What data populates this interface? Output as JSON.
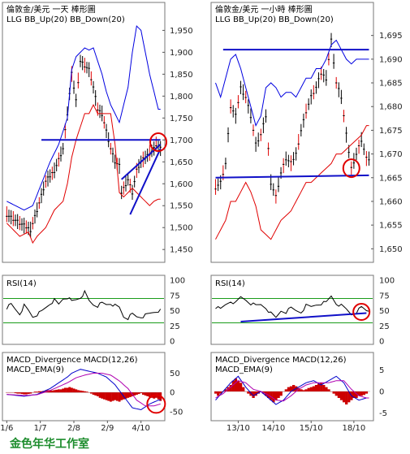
{
  "colors": {
    "price": "#000000",
    "bb_up": "#0000e0",
    "bb_down": "#e00000",
    "trend": "#1010c8",
    "circle": "#e00000",
    "rsi_ref": "#1a9c1a",
    "macd_line": "#0000cc",
    "macd_ema": "#b000b0",
    "macd_hist": "#cc0000",
    "studio": "#1c8c2c"
  },
  "studio_label": "金色年华工作室",
  "chart_data": [
    {
      "id": "daily",
      "type": "line",
      "title": "倫敦金/美元 一天 棒形圖",
      "subtitle": "LLG  BB_Up(20)  BB_Down(20)",
      "ylim": [
        1430,
        1960
      ],
      "y_ticks": [
        "1,950",
        "1,900",
        "1,850",
        "1,800",
        "1,750",
        "1,700",
        "1,650",
        "1,600",
        "1,550",
        "1,500",
        "1,450"
      ],
      "x_ticks": [
        "1/6",
        "1/7",
        "2/8",
        "2/9",
        "4/10"
      ],
      "x_tick_pos": [
        0,
        15.5,
        31,
        46.5,
        62
      ],
      "n_bars": 72,
      "price": {
        "i": [
          0,
          6,
          11,
          14,
          18,
          22,
          26,
          28,
          30,
          32,
          34,
          38,
          40,
          42,
          44,
          46,
          48,
          50,
          52,
          53,
          56,
          58,
          60,
          62,
          64,
          66,
          68,
          69,
          71
        ],
        "v": [
          1530,
          1510,
          1495,
          1540,
          1605,
          1630,
          1680,
          1760,
          1850,
          1790,
          1880,
          1860,
          1820,
          1770,
          1760,
          1720,
          1680,
          1650,
          1640,
          1580,
          1610,
          1580,
          1630,
          1650,
          1660,
          1670,
          1680,
          1690,
          1680
        ]
      },
      "bb_up": {
        "i": [
          0,
          8,
          12,
          16,
          20,
          24,
          28,
          30,
          32,
          34,
          36,
          38,
          40,
          42,
          44,
          46,
          48,
          50,
          52,
          56,
          58,
          60,
          62,
          64,
          66,
          68,
          70
        ],
        "v": [
          1560,
          1540,
          1550,
          1600,
          1650,
          1690,
          1750,
          1860,
          1890,
          1900,
          1910,
          1905,
          1910,
          1880,
          1850,
          1810,
          1780,
          1760,
          1740,
          1820,
          1900,
          1960,
          1950,
          1900,
          1850,
          1810,
          1770
        ]
      },
      "bb_down": {
        "i": [
          0,
          6,
          10,
          12,
          14,
          18,
          22,
          26,
          28,
          30,
          32,
          34,
          36,
          38,
          40,
          42,
          44,
          46,
          48,
          50,
          52,
          54,
          56,
          58,
          62,
          66,
          68,
          70
        ],
        "v": [
          1510,
          1480,
          1490,
          1465,
          1480,
          1500,
          1540,
          1560,
          1600,
          1660,
          1700,
          1730,
          1760,
          1760,
          1780,
          1760,
          1760,
          1760,
          1760,
          1690,
          1580,
          1570,
          1580,
          1590,
          1570,
          1550,
          1560,
          1565
        ]
      },
      "trend_lines": [
        {
          "i0": 16,
          "v0": 1700,
          "i1": 71,
          "v1": 1700
        },
        {
          "i0": 53,
          "v0": 1610,
          "i1": 71,
          "v1": 1690
        },
        {
          "i0": 57,
          "v0": 1530,
          "i1": 71,
          "v1": 1680
        }
      ],
      "circle": {
        "i": 70,
        "v": 1695
      },
      "rsi": {
        "label": "RSI(14)",
        "ylim": [
          0,
          100
        ],
        "y_ticks": [
          "100",
          "75",
          "50",
          "25",
          "0"
        ],
        "ref_levels": [
          70,
          30
        ],
        "i": [
          0,
          2,
          4,
          6,
          8,
          10,
          12,
          14,
          16,
          18,
          20,
          22,
          24,
          26,
          28,
          30,
          32,
          34,
          36,
          38,
          40,
          42,
          44,
          46,
          48,
          50,
          52,
          54,
          56,
          58,
          60,
          62,
          64,
          66,
          68,
          70
        ],
        "v": [
          55,
          60,
          52,
          45,
          58,
          50,
          40,
          44,
          48,
          55,
          62,
          67,
          60,
          70,
          72,
          65,
          68,
          72,
          80,
          66,
          60,
          58,
          62,
          60,
          62,
          58,
          55,
          40,
          38,
          44,
          40,
          40,
          42,
          45,
          48,
          50
        ]
      },
      "macd": {
        "label1": "MACD_Divergence  MACD(12,26)",
        "label2": "MACD_EMA(9)",
        "ylim": [
          -65,
          70
        ],
        "y_ticks": [
          "50",
          "0",
          "-50"
        ],
        "y_tick_vals": [
          50,
          0,
          -50
        ],
        "line": {
          "i": [
            0,
            8,
            14,
            20,
            24,
            28,
            30,
            32,
            34,
            38,
            42,
            46,
            50,
            54,
            58,
            62,
            66,
            70
          ],
          "v": [
            -5,
            -10,
            -5,
            10,
            25,
            40,
            50,
            55,
            60,
            55,
            50,
            40,
            20,
            -10,
            -40,
            -45,
            -30,
            -20
          ]
        },
        "ema": {
          "i": [
            0,
            8,
            14,
            20,
            24,
            28,
            32,
            36,
            40,
            44,
            48,
            52,
            56,
            60,
            64,
            68,
            71
          ],
          "v": [
            -5,
            -8,
            -6,
            5,
            15,
            25,
            38,
            45,
            50,
            50,
            45,
            30,
            10,
            -20,
            -35,
            -35,
            -30
          ]
        },
        "hist": {
          "i0": 0,
          "v": [
            0,
            0,
            0,
            0,
            -2,
            -3,
            -3,
            -4,
            -5,
            -5,
            -4,
            -3,
            0,
            2,
            2,
            3,
            3,
            4,
            5,
            6,
            6,
            5,
            6,
            7,
            8,
            8,
            10,
            12,
            12,
            14,
            12,
            10,
            8,
            6,
            5,
            4,
            3,
            2,
            0,
            -3,
            -6,
            -8,
            -10,
            -14,
            -16,
            -18,
            -20,
            -22,
            -24,
            -22,
            -20,
            -22,
            -24,
            -20,
            -18,
            -16,
            -14,
            -12,
            -10,
            -8,
            -6,
            -4,
            -2,
            -6,
            -8,
            -10,
            -12,
            -14,
            -16,
            -14,
            -18,
            -22
          ]
        }
      },
      "macd_circle": {
        "i": 69,
        "v": -30
      }
    },
    {
      "id": "hourly",
      "type": "line",
      "title": "倫敦金/美元 一小時 棒形圖",
      "subtitle": "LLG  BB_Up(20)  BB_Down(20)",
      "ylim": [
        1648,
        1697
      ],
      "y_ticks": [
        "1,695",
        "1,690",
        "1,685",
        "1,680",
        "1,675",
        "1,670",
        "1,665",
        "1,660",
        "1,655",
        "1,650"
      ],
      "x_ticks": [
        "13/10",
        "14/10",
        "15/10",
        "18/10"
      ],
      "x_tick_pos": [
        9,
        23,
        38,
        55
      ],
      "n_bars": 62,
      "price": {
        "i": [
          0,
          2,
          4,
          6,
          8,
          10,
          12,
          14,
          16,
          18,
          20,
          22,
          24,
          26,
          28,
          30,
          32,
          34,
          36,
          38,
          40,
          42,
          44,
          46,
          48,
          50,
          52,
          54,
          56,
          58,
          60
        ],
        "v": [
          1663,
          1664,
          1668,
          1680,
          1678,
          1684,
          1682,
          1678,
          1672,
          1674,
          1678,
          1664,
          1661,
          1666,
          1669,
          1668,
          1670,
          1675,
          1679,
          1682,
          1684,
          1687,
          1686,
          1694,
          1685,
          1682,
          1674,
          1667,
          1670,
          1673,
          1669
        ]
      },
      "bb_up": {
        "i": [
          0,
          2,
          4,
          6,
          8,
          10,
          12,
          14,
          16,
          18,
          20,
          22,
          24,
          26,
          28,
          30,
          32,
          34,
          36,
          38,
          40,
          42,
          44,
          46,
          48,
          50,
          52,
          54,
          56,
          58,
          60
        ],
        "v": [
          1685,
          1682,
          1686,
          1690,
          1691,
          1688,
          1684,
          1680,
          1676,
          1678,
          1684,
          1685,
          1684,
          1682,
          1683,
          1683,
          1682,
          1684,
          1686,
          1686,
          1688,
          1688,
          1690,
          1693,
          1694,
          1692,
          1690,
          1689,
          1690,
          1690,
          1690
        ]
      },
      "bb_down": {
        "i": [
          0,
          2,
          4,
          6,
          8,
          10,
          12,
          14,
          16,
          18,
          20,
          22,
          24,
          26,
          28,
          30,
          32,
          34,
          36,
          38,
          40,
          42,
          44,
          46,
          48,
          50,
          52,
          54,
          56,
          58,
          60
        ],
        "v": [
          1652,
          1654,
          1656,
          1660,
          1660,
          1662,
          1664,
          1662,
          1659,
          1654,
          1653,
          1652,
          1654,
          1656,
          1657,
          1658,
          1660,
          1662,
          1664,
          1664,
          1665,
          1666,
          1667,
          1668,
          1670,
          1670,
          1671,
          1672,
          1673,
          1674,
          1676
        ]
      },
      "trend_lines": [
        {
          "i0": 3,
          "v0": 1692,
          "i1": 61,
          "v1": 1692
        },
        {
          "i0": 0,
          "v0": 1665,
          "i1": 61,
          "v1": 1665.5
        }
      ],
      "circle": {
        "i": 54,
        "v": 1667
      },
      "rsi": {
        "label": "RSI(14)",
        "ylim": [
          0,
          100
        ],
        "y_ticks": [
          "100",
          "75",
          "50",
          "25",
          "0"
        ],
        "ref_levels": [
          70,
          30
        ],
        "i": [
          0,
          2,
          4,
          6,
          8,
          10,
          12,
          14,
          16,
          18,
          20,
          22,
          24,
          26,
          28,
          30,
          32,
          34,
          36,
          38,
          40,
          42,
          44,
          46,
          48,
          50,
          52,
          54,
          56,
          58,
          60
        ],
        "v": [
          56,
          52,
          60,
          66,
          62,
          72,
          68,
          62,
          58,
          60,
          55,
          45,
          38,
          50,
          48,
          54,
          50,
          48,
          58,
          56,
          60,
          62,
          63,
          74,
          62,
          58,
          52,
          44,
          48,
          55,
          50
        ]
      },
      "rsi_trend": {
        "i0": 10,
        "v0": 32,
        "i1": 60,
        "v1": 46
      },
      "rsi_circle": {
        "i": 58,
        "v": 48
      },
      "macd": {
        "label1": "MACD_Divergence  MACD(12,26)",
        "label2": "MACD_EMA(9)",
        "ylim": [
          -6,
          6
        ],
        "y_ticks": [
          "5",
          "0",
          "-5"
        ],
        "y_tick_vals": [
          5,
          0,
          -5
        ],
        "line": {
          "i": [
            0,
            3,
            6,
            9,
            12,
            15,
            18,
            21,
            24,
            27,
            30,
            33,
            36,
            39,
            42,
            45,
            48,
            51,
            54,
            57,
            60
          ],
          "v": [
            -2,
            0,
            2,
            3.5,
            1,
            -1,
            0,
            -1.5,
            -3,
            -2,
            0,
            1,
            2,
            2.5,
            1.5,
            2.5,
            3.5,
            2,
            -1,
            -2,
            -1.5
          ]
        },
        "ema": {
          "i": [
            0,
            3,
            6,
            9,
            12,
            15,
            18,
            21,
            24,
            27,
            30,
            33,
            36,
            39,
            42,
            45,
            48,
            51,
            54,
            57,
            60
          ],
          "v": [
            -1.5,
            -0.5,
            1,
            2.5,
            2,
            0.5,
            0,
            -0.8,
            -2,
            -2.2,
            -1,
            0.5,
            1.5,
            2,
            2,
            2,
            2.5,
            2.5,
            0.5,
            -1,
            -1.5
          ]
        },
        "hist": {
          "i0": 0,
          "v": [
            -0.5,
            -1,
            -0.5,
            0,
            0.5,
            1,
            1.5,
            2.5,
            3,
            2.5,
            2,
            1,
            0,
            -0.5,
            -1,
            -1.5,
            -1,
            -0.5,
            0,
            -0.5,
            -1,
            -1.5,
            -2,
            -2.5,
            -2,
            -1.5,
            -1,
            0,
            0.5,
            1,
            1.2,
            1.5,
            1.2,
            0.8,
            0.5,
            0.3,
            0.5,
            0.8,
            1,
            1.2,
            1.5,
            1.8,
            2,
            1.5,
            1,
            0.5,
            0,
            -0.5,
            -1,
            -1.5,
            -2,
            -2.5,
            -3,
            -2.5,
            -2,
            -1.5,
            -1.5,
            -1,
            -1,
            -0.8,
            -0.5
          ]
        }
      }
    }
  ]
}
